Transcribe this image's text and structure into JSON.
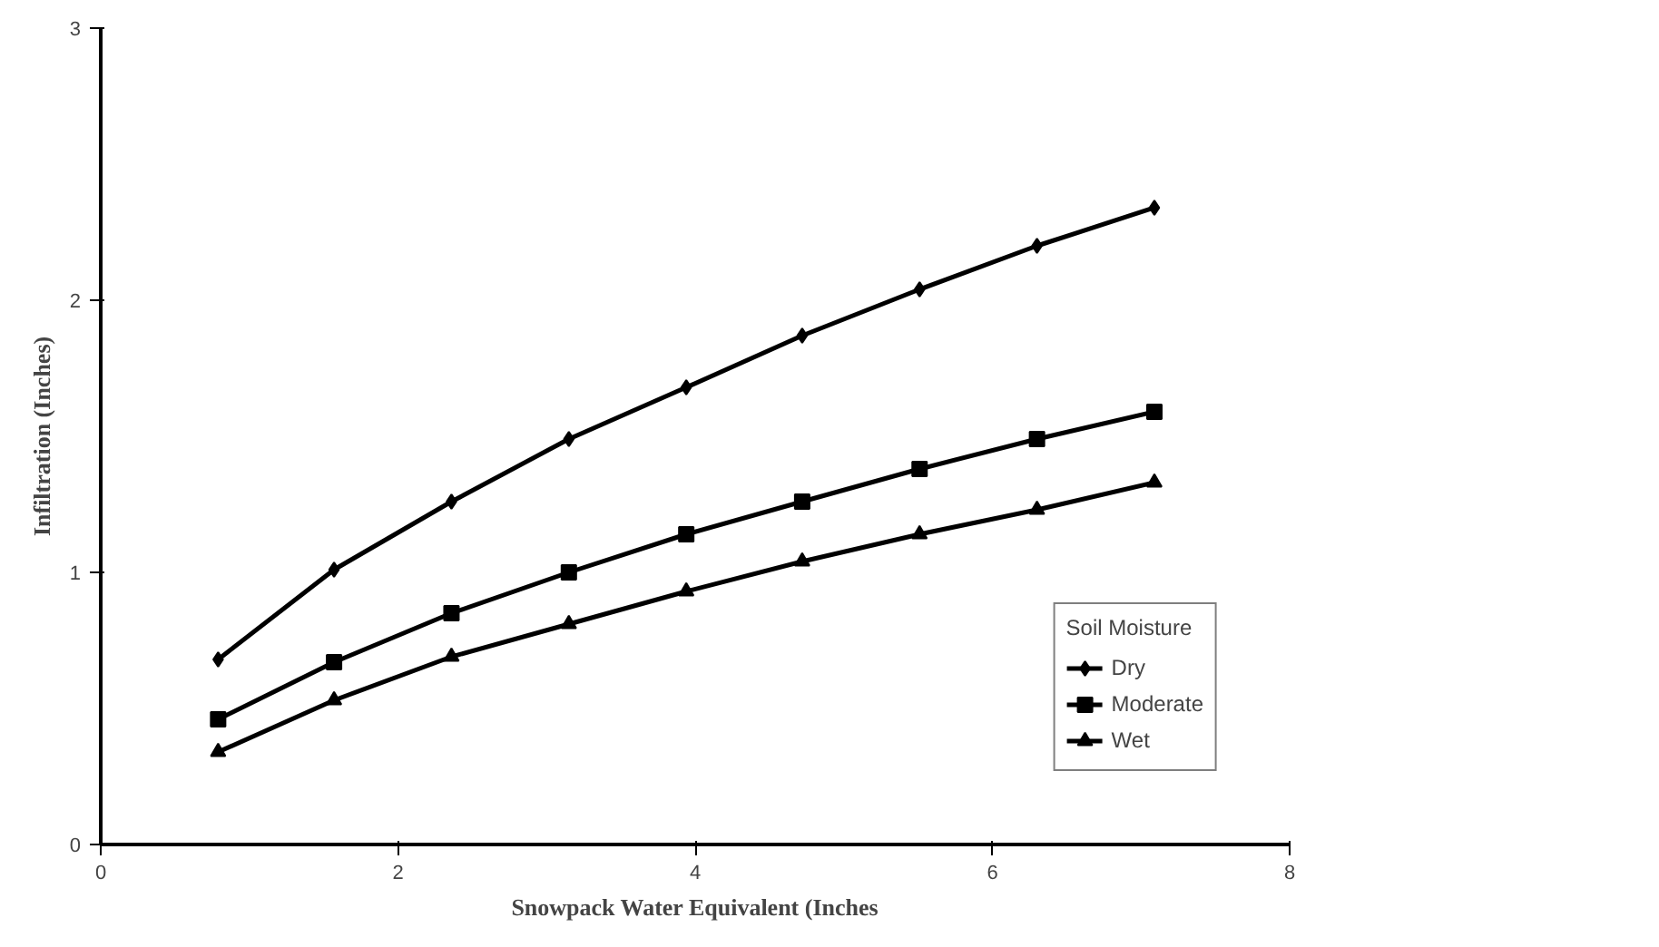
{
  "chart_data": {
    "type": "line",
    "xlabel": "Snowpack Water Equivalent (Inches",
    "ylabel": "Infiltration (Inches)",
    "x": [
      0.79,
      1.57,
      2.36,
      3.15,
      3.94,
      4.72,
      5.51,
      6.3,
      7.09
    ],
    "series": [
      {
        "name": "Dry",
        "color": "#000000",
        "marker": "diamond",
        "values": [
          0.68,
          1.01,
          1.26,
          1.49,
          1.68,
          1.87,
          2.04,
          2.2,
          2.34
        ]
      },
      {
        "name": "Moderate",
        "color": "#000000",
        "marker": "square",
        "values": [
          0.46,
          0.67,
          0.85,
          1.0,
          1.14,
          1.26,
          1.38,
          1.49,
          1.59
        ]
      },
      {
        "name": "Wet",
        "color": "#000000",
        "marker": "triangle",
        "values": [
          0.34,
          0.53,
          0.69,
          0.81,
          0.93,
          1.04,
          1.14,
          1.23,
          1.33
        ]
      }
    ],
    "xlim": [
      0,
      8
    ],
    "xticks": [
      0,
      2,
      4,
      6,
      8
    ],
    "ylim": [
      0,
      3
    ],
    "yticks": [
      0,
      1,
      2,
      3
    ],
    "grid": false,
    "legend": "bottom right",
    "legend_title": "Soil Moisture",
    "line_style": "solid"
  }
}
